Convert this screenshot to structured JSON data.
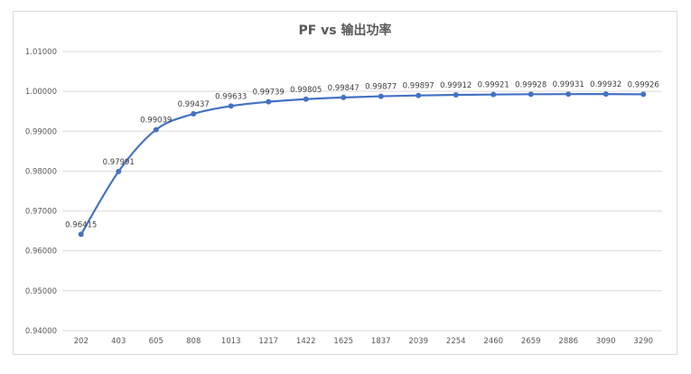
{
  "chart_data": {
    "type": "line",
    "title": "PF vs 输出功率",
    "xlabel": "",
    "ylabel": "",
    "categories": [
      "202",
      "403",
      "605",
      "808",
      "1013",
      "1217",
      "1422",
      "1625",
      "1837",
      "2039",
      "2254",
      "2460",
      "2659",
      "2886",
      "3090",
      "3290"
    ],
    "series": [
      {
        "values": [
          0.96415,
          0.97991,
          0.99039,
          0.99437,
          0.99633,
          0.99739,
          0.99805,
          0.99847,
          0.99877,
          0.99897,
          0.99912,
          0.99921,
          0.99928,
          0.99931,
          0.99932,
          0.99926
        ],
        "labels": [
          "0.96415",
          "0.97991",
          "0.99039",
          "0.99437",
          "0.99633",
          "0.99739",
          "0.99805",
          "0.99847",
          "0.99877",
          "0.99897",
          "0.99912",
          "0.99921",
          "0.99928",
          "0.99931",
          "0.99932",
          "0.99926"
        ],
        "color": "#4472c4"
      }
    ],
    "ylim": [
      0.94,
      1.01
    ],
    "yticks": [
      "0.94000",
      "0.95000",
      "0.96000",
      "0.97000",
      "0.98000",
      "0.99000",
      "1.00000",
      "1.01000"
    ],
    "grid": true,
    "legend": "none",
    "gridColor": "#d9d9d9"
  }
}
